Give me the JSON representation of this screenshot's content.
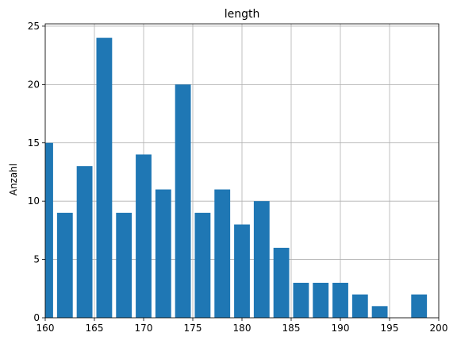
{
  "chart_data": {
    "type": "bar",
    "title": "length",
    "xlabel": "",
    "ylabel": "Anzahl",
    "xlim": [
      160,
      200
    ],
    "ylim": [
      0,
      25.2
    ],
    "x_ticks": [
      160,
      165,
      170,
      175,
      180,
      185,
      190,
      195,
      200
    ],
    "y_ticks": [
      0,
      5,
      10,
      15,
      20,
      25
    ],
    "grid": true,
    "bar_color": "#1f77b4",
    "bin_width": 2,
    "bar_width": 1.6,
    "bars": [
      {
        "x": 160,
        "value": 15
      },
      {
        "x": 162,
        "value": 9
      },
      {
        "x": 164,
        "value": 13
      },
      {
        "x": 166,
        "value": 24
      },
      {
        "x": 168,
        "value": 9
      },
      {
        "x": 170,
        "value": 14
      },
      {
        "x": 172,
        "value": 11
      },
      {
        "x": 174,
        "value": 20
      },
      {
        "x": 176,
        "value": 9
      },
      {
        "x": 178,
        "value": 11
      },
      {
        "x": 180,
        "value": 8
      },
      {
        "x": 182,
        "value": 10
      },
      {
        "x": 184,
        "value": 6
      },
      {
        "x": 186,
        "value": 3
      },
      {
        "x": 188,
        "value": 3
      },
      {
        "x": 190,
        "value": 3
      },
      {
        "x": 192,
        "value": 2
      },
      {
        "x": 194,
        "value": 1
      },
      {
        "x": 196,
        "value": 0
      },
      {
        "x": 198,
        "value": 2
      }
    ]
  }
}
